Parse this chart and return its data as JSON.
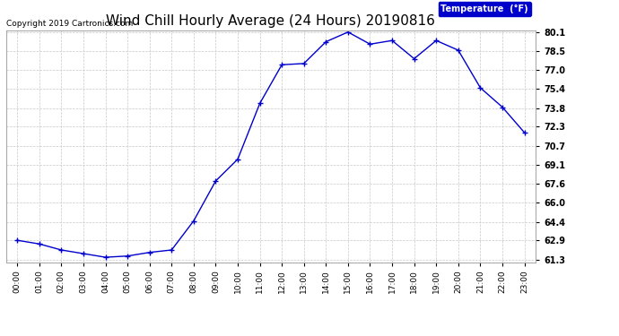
{
  "title": "Wind Chill Hourly Average (24 Hours) 20190816",
  "copyright_text": "Copyright 2019 Cartronics.com",
  "legend_label": "Temperature  (°F)",
  "x_labels": [
    "00:00",
    "01:00",
    "02:00",
    "03:00",
    "04:00",
    "05:00",
    "06:00",
    "07:00",
    "08:00",
    "09:00",
    "10:00",
    "11:00",
    "12:00",
    "13:00",
    "14:00",
    "15:00",
    "16:00",
    "17:00",
    "18:00",
    "19:00",
    "20:00",
    "21:00",
    "22:00",
    "23:00"
  ],
  "y_values": [
    62.9,
    62.6,
    62.1,
    61.8,
    61.5,
    61.6,
    61.9,
    62.1,
    64.5,
    67.8,
    69.6,
    74.2,
    77.4,
    77.5,
    79.3,
    80.1,
    79.1,
    79.4,
    77.9,
    79.4,
    78.6,
    75.5,
    73.9,
    71.8
  ],
  "ylim_min": 61.3,
  "ylim_max": 80.1,
  "yticks": [
    61.3,
    62.9,
    64.4,
    66.0,
    67.6,
    69.1,
    70.7,
    72.3,
    73.8,
    75.4,
    77.0,
    78.5,
    80.1
  ],
  "line_color": "#0000cc",
  "marker_color": "#0000cc",
  "background_color": "#ffffff",
  "grid_color": "#c8c8c8",
  "title_fontsize": 11,
  "legend_bg_color": "#0000cc",
  "legend_text_color": "#ffffff"
}
